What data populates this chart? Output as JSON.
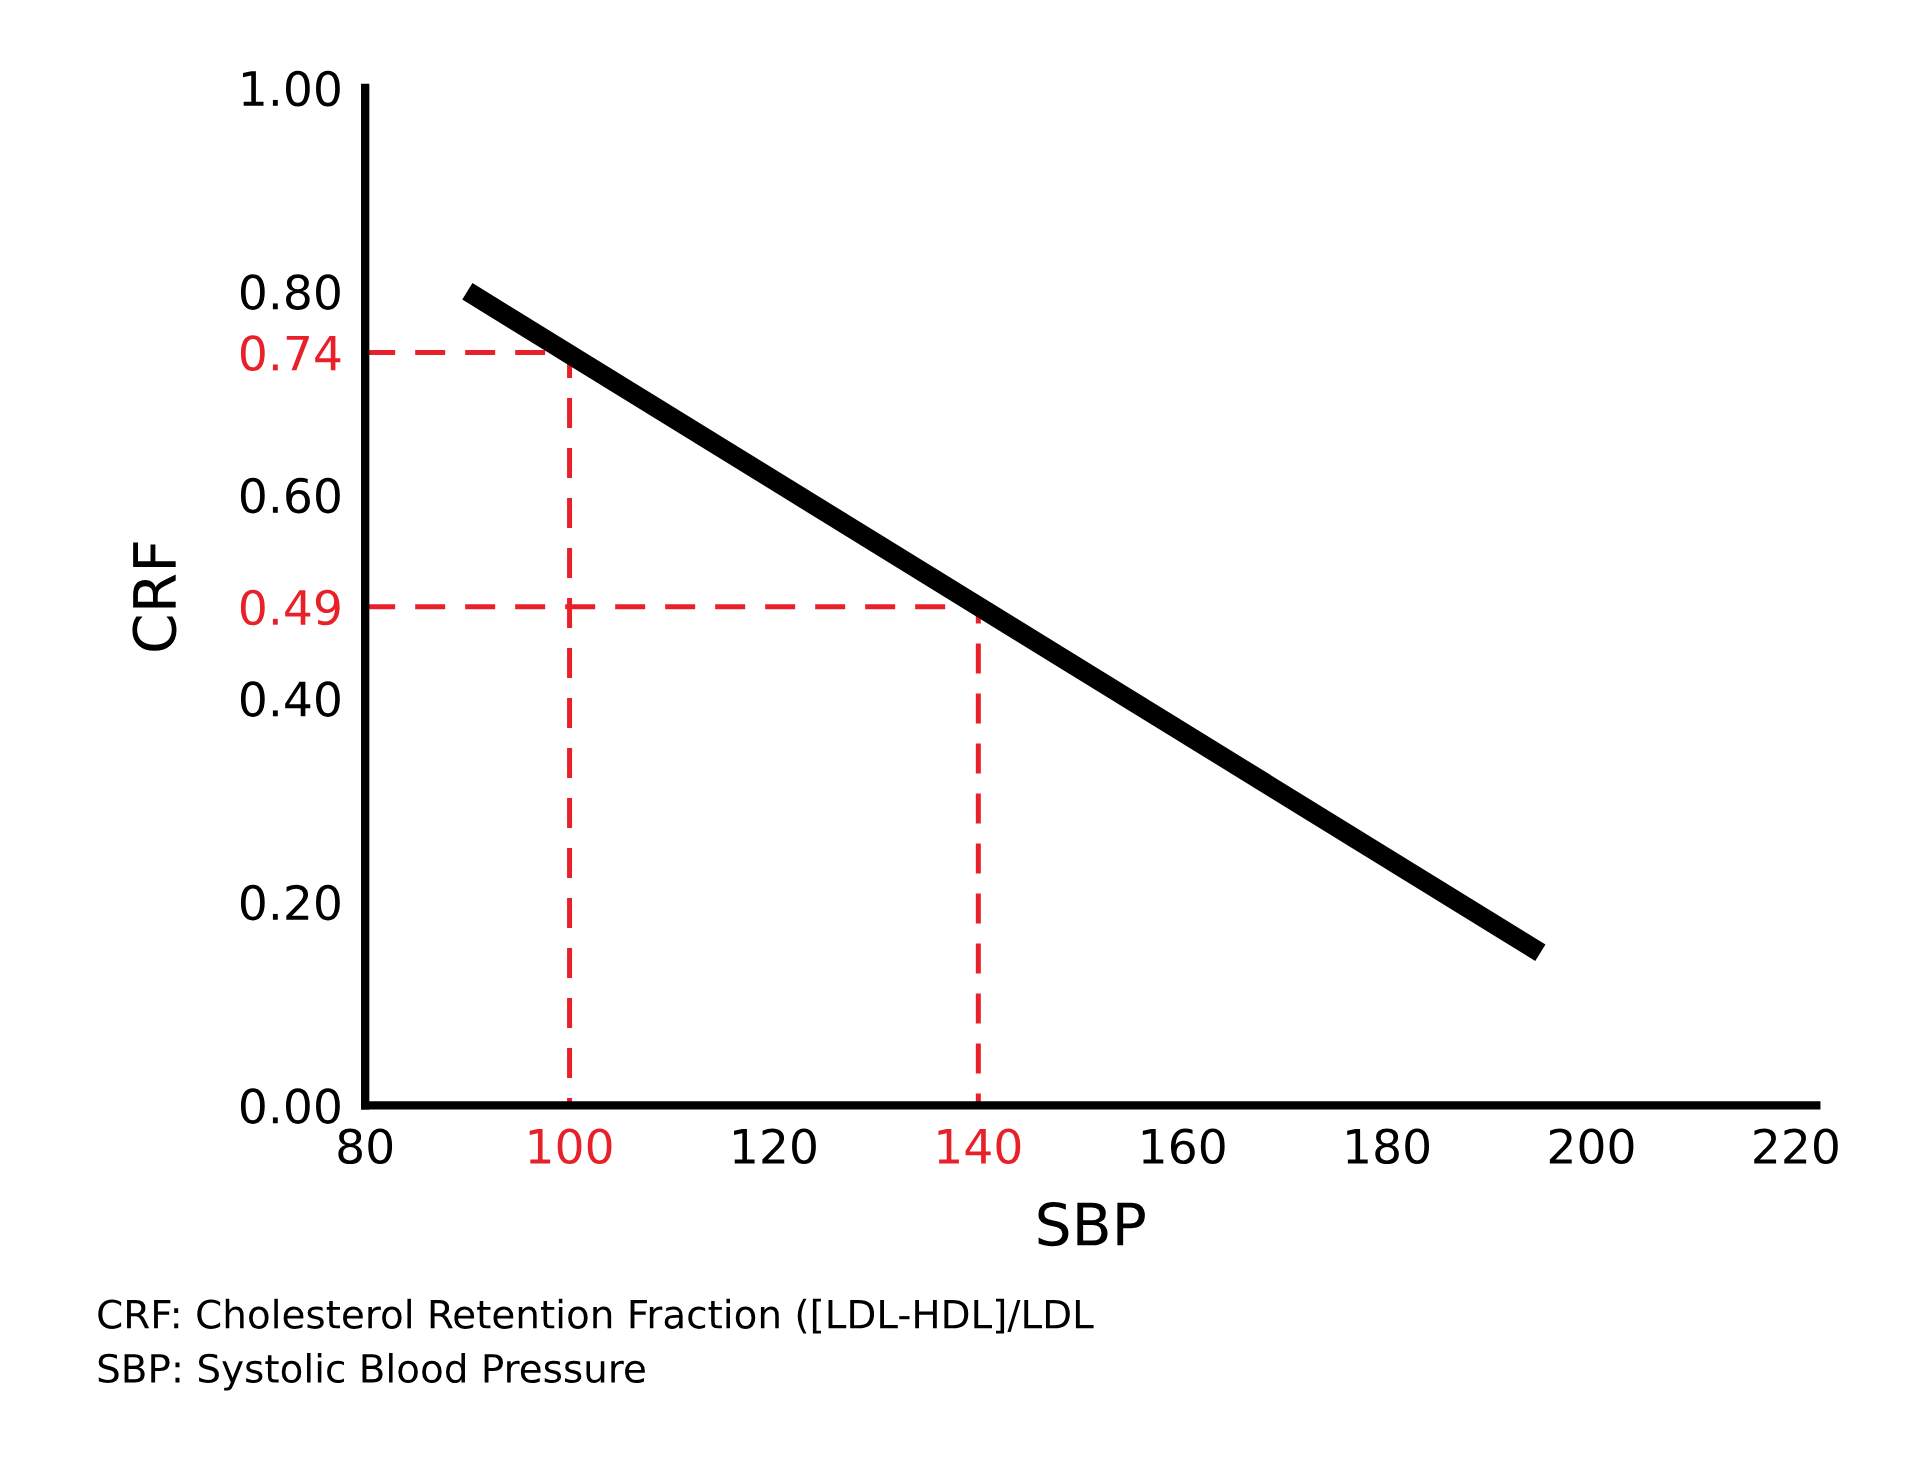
{
  "chart_data": {
    "type": "line",
    "xlabel": "SBP",
    "ylabel": "CRF",
    "series": [
      {
        "color": "#000000",
        "x": [
          90,
          195
        ],
        "values": [
          0.8,
          0.15
        ],
        "line_style": "solid"
      },
      {
        "color": "#e8202a",
        "x": [
          80,
          100,
          100
        ],
        "values": [
          0.74,
          0.74,
          0
        ],
        "line_style": "dashed"
      },
      {
        "color": "#e8202a",
        "x": [
          80,
          140,
          140
        ],
        "values": [
          0.49,
          0.49,
          0
        ],
        "line_style": "dashed"
      }
    ],
    "xlim": [
      80,
      222
    ],
    "ylim": [
      0,
      1.0
    ],
    "xticks": [
      80,
      100,
      120,
      140,
      160,
      180,
      200,
      220
    ],
    "yticks": [
      {
        "value": 0,
        "label": "0.00"
      },
      {
        "value": 0.2,
        "label": "0.20"
      },
      {
        "value": 0.4,
        "label": "0.40"
      },
      {
        "value": 0.49,
        "label": "0.49"
      },
      {
        "value": 0.6,
        "label": "0.60"
      },
      {
        "value": 0.74,
        "label": "0.74"
      },
      {
        "value": 0.8,
        "label": "0.80"
      },
      {
        "value": 1.0,
        "label": "1.00"
      }
    ],
    "grid": false,
    "marker": "none",
    "annotations": [
      "CRF: Cholesterol Retention Fraction ([LDL-HDL]/LDL",
      "SBP: Systolic Blood Pressure"
    ]
  }
}
